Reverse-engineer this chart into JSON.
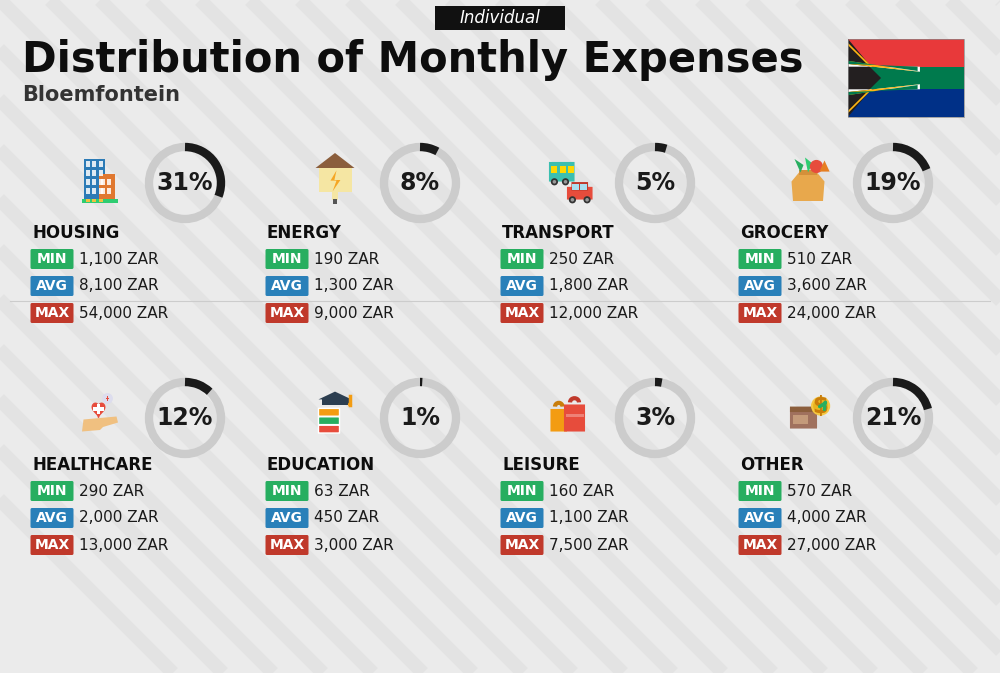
{
  "title": "Distribution of Monthly Expenses",
  "subtitle": "Bloemfontein",
  "tag": "Individual",
  "background_color": "#ebebeb",
  "categories": [
    {
      "name": "HOUSING",
      "pct": 31,
      "min": "1,100 ZAR",
      "avg": "8,100 ZAR",
      "max": "54,000 ZAR",
      "row": 0,
      "col": 0
    },
    {
      "name": "ENERGY",
      "pct": 8,
      "min": "190 ZAR",
      "avg": "1,300 ZAR",
      "max": "9,000 ZAR",
      "row": 0,
      "col": 1
    },
    {
      "name": "TRANSPORT",
      "pct": 5,
      "min": "250 ZAR",
      "avg": "1,800 ZAR",
      "max": "12,000 ZAR",
      "row": 0,
      "col": 2
    },
    {
      "name": "GROCERY",
      "pct": 19,
      "min": "510 ZAR",
      "avg": "3,600 ZAR",
      "max": "24,000 ZAR",
      "row": 0,
      "col": 3
    },
    {
      "name": "HEALTHCARE",
      "pct": 12,
      "min": "290 ZAR",
      "avg": "2,000 ZAR",
      "max": "13,000 ZAR",
      "row": 1,
      "col": 0
    },
    {
      "name": "EDUCATION",
      "pct": 1,
      "min": "63 ZAR",
      "avg": "450 ZAR",
      "max": "3,000 ZAR",
      "row": 1,
      "col": 1
    },
    {
      "name": "LEISURE",
      "pct": 3,
      "min": "160 ZAR",
      "avg": "1,100 ZAR",
      "max": "7,500 ZAR",
      "row": 1,
      "col": 2
    },
    {
      "name": "OTHER",
      "pct": 21,
      "min": "570 ZAR",
      "avg": "4,000 ZAR",
      "max": "27,000 ZAR",
      "row": 1,
      "col": 3
    }
  ],
  "min_color": "#27ae60",
  "avg_color": "#2980b9",
  "max_color": "#c0392b",
  "arc_dark": "#1a1a1a",
  "arc_light": "#cccccc",
  "title_fontsize": 30,
  "subtitle_fontsize": 15,
  "category_fontsize": 12,
  "pct_fontsize": 17,
  "value_fontsize": 11,
  "tag_fontsize": 12,
  "stripe_color": "#d5d5d5"
}
